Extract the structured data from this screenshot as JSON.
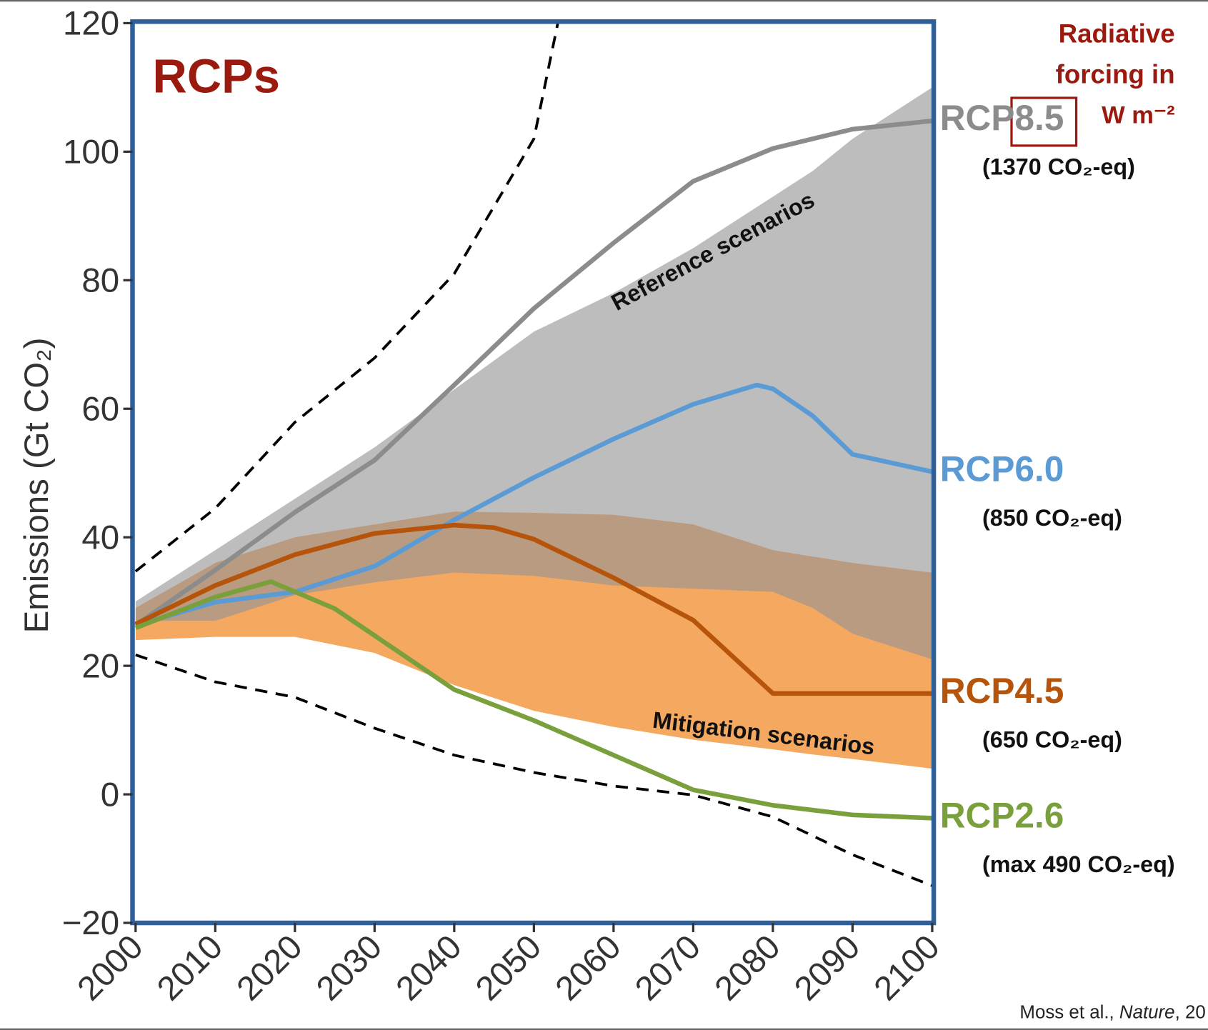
{
  "chart_data": {
    "type": "line",
    "title": "RCPs",
    "ylabel": "Emissions (Gt CO₂)",
    "side_title": [
      "Radiative",
      "forcing in",
      "W m⁻²"
    ],
    "source": [
      "Moss et al., ",
      "Nature",
      ", 20"
    ],
    "xlim": [
      2000,
      2100
    ],
    "xticks": [
      2000,
      2010,
      2020,
      2030,
      2040,
      2050,
      2060,
      2070,
      2080,
      2090,
      2100
    ],
    "ylim": [
      -20,
      120
    ],
    "yticks": [
      {
        "value": -20,
        "label": "−20"
      },
      0,
      20,
      40,
      60,
      80,
      100,
      120
    ],
    "bands": [
      {
        "label": "Reference scenarios",
        "color": "#bdbdbd",
        "x": [
          2000,
          2010,
          2020,
          2030,
          2040,
          2050,
          2060,
          2070,
          2080,
          2085,
          2090,
          2100
        ],
        "upper": [
          30,
          38,
          46,
          54,
          63,
          72,
          78,
          85,
          93,
          97,
          102,
          110
        ],
        "lower": [
          27,
          27,
          31,
          33,
          34.5,
          34,
          32.5,
          32,
          31.5,
          29,
          25,
          21
        ]
      },
      {
        "label": "Mitigation scenarios",
        "color": "#f4a860",
        "x": [
          2000,
          2010,
          2020,
          2030,
          2040,
          2050,
          2060,
          2070,
          2080,
          2085,
          2090,
          2100
        ],
        "upper": [
          29,
          36,
          40,
          42,
          44,
          43.8,
          43.5,
          42,
          38,
          37,
          36,
          34.5
        ],
        "lower": [
          24,
          24.5,
          24.5,
          22,
          17,
          13,
          10.5,
          8.5,
          7,
          6.2,
          5.5,
          4
        ]
      }
    ],
    "overlap_color": "#b89b80",
    "series": [
      {
        "name": "RCP8.5",
        "note": "(1370 CO₂-eq)",
        "color": "#8c8c8c",
        "x": [
          2000,
          2010,
          2020,
          2030,
          2040,
          2050,
          2060,
          2070,
          2080,
          2090,
          2100
        ],
        "values": [
          26.3,
          34.9,
          43.9,
          52,
          63.7,
          75.6,
          85.8,
          95.4,
          100.5,
          103.5,
          104.8
        ]
      },
      {
        "name": "RCP6.0",
        "note": "(850 CO₂-eq)",
        "color": "#5b9bd5",
        "x": [
          2000,
          2010,
          2020,
          2030,
          2040,
          2050,
          2060,
          2070,
          2078,
          2080,
          2085,
          2090,
          2100
        ],
        "values": [
          26.3,
          29.9,
          31.5,
          35.5,
          42.7,
          49.3,
          55.3,
          60.7,
          63.7,
          63.1,
          58.9,
          52.9,
          50.2
        ]
      },
      {
        "name": "RCP4.5",
        "note": "(650 CO₂-eq)",
        "color": "#b5540a",
        "x": [
          2000,
          2010,
          2020,
          2030,
          2040,
          2045,
          2050,
          2060,
          2070,
          2080,
          2090,
          2100
        ],
        "values": [
          26.5,
          32.5,
          37.3,
          40.6,
          41.9,
          41.5,
          39.7,
          33.7,
          27.1,
          15.7,
          15.7,
          15.7
        ]
      },
      {
        "name": "RCP2.6",
        "note": "(max 490 CO₂-eq)",
        "color": "#7aa03d",
        "x": [
          2000,
          2010,
          2017,
          2025,
          2030,
          2040,
          2050,
          2060,
          2070,
          2080,
          2090,
          2100
        ],
        "values": [
          25.9,
          30.7,
          33.1,
          28.9,
          24.7,
          16.3,
          11.5,
          6.1,
          0.7,
          -1.7,
          -3.2,
          -3.7
        ]
      }
    ],
    "bounds": [
      {
        "color": "#000000",
        "x": [
          2000,
          2010,
          2020,
          2030,
          2040,
          2050,
          2053
        ],
        "values": [
          34.7,
          44.5,
          57.9,
          67.9,
          81,
          102,
          120
        ]
      },
      {
        "color": "#000000",
        "x": [
          2000,
          2010,
          2020,
          2030,
          2040,
          2050,
          2060,
          2070,
          2080,
          2090,
          2100
        ],
        "values": [
          21.7,
          17.5,
          15.1,
          10.3,
          6.1,
          3.4,
          1.3,
          -0.1,
          -3.5,
          -9.4,
          -14.2
        ]
      }
    ]
  }
}
